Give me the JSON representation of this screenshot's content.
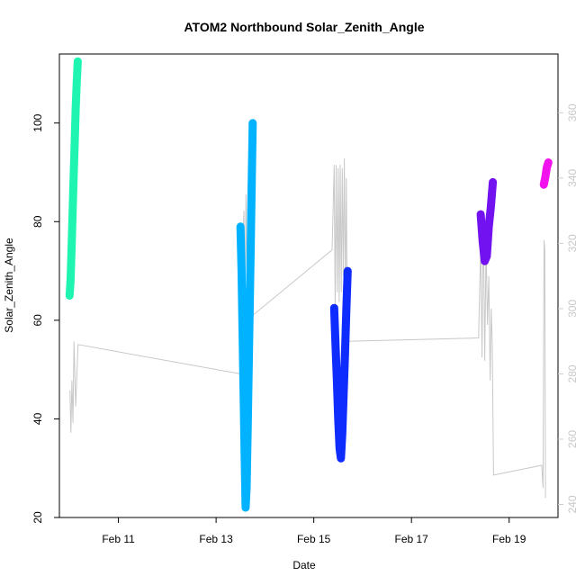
{
  "chart_data": {
    "type": "line",
    "title": "ATOM2 Northbound Solar_Zenith_Angle",
    "xlabel": "Date",
    "ylabel": "Solar_Zenith_Angle",
    "xlim": [
      "2017-02-09 19:00",
      "2017-02-20 00:00"
    ],
    "ylim": [
      20,
      114
    ],
    "ylim_right": [
      236,
      378
    ],
    "grid": false,
    "legend": "none",
    "x_ticks": [
      {
        "x": "2017-02-11 00:00",
        "label": "Feb 11"
      },
      {
        "x": "2017-02-13 00:00",
        "label": "Feb 13"
      },
      {
        "x": "2017-02-15 00:00",
        "label": "Feb 15"
      },
      {
        "x": "2017-02-17 00:00",
        "label": "Feb 17"
      },
      {
        "x": "2017-02-19 00:00",
        "label": "Feb 19"
      }
    ],
    "y_ticks_left": [
      "20",
      "40",
      "60",
      "80",
      "100"
    ],
    "y_ticks_right": [
      "240",
      "260",
      "280",
      "300",
      "320",
      "340",
      "360"
    ],
    "secondary_axis_color": "#cccccc",
    "series": [
      {
        "color": "#1ff5b0",
        "points": [
          [
            "2017-02-10 00:00",
            65
          ],
          [
            "2017-02-10 00:30",
            68
          ],
          [
            "2017-02-10 01:00",
            75
          ],
          [
            "2017-02-10 01:30",
            82
          ],
          [
            "2017-02-10 02:00",
            89
          ],
          [
            "2017-02-10 02:30",
            96
          ],
          [
            "2017-02-10 03:00",
            103
          ],
          [
            "2017-02-10 03:30",
            108
          ],
          [
            "2017-02-10 04:00",
            112.5
          ]
        ]
      },
      {
        "color": "#00b2ff",
        "points": [
          [
            "2017-02-13 12:00",
            79
          ],
          [
            "2017-02-13 12:30",
            70
          ],
          [
            "2017-02-13 13:00",
            58
          ],
          [
            "2017-02-13 13:30",
            46
          ],
          [
            "2017-02-13 14:00",
            33
          ],
          [
            "2017-02-13 14:30",
            22
          ],
          [
            "2017-02-13 15:00",
            26
          ],
          [
            "2017-02-13 15:30",
            38
          ],
          [
            "2017-02-13 16:00",
            50
          ],
          [
            "2017-02-13 16:30",
            62
          ],
          [
            "2017-02-13 17:00",
            75
          ],
          [
            "2017-02-13 17:30",
            88
          ],
          [
            "2017-02-13 18:00",
            100
          ]
        ]
      },
      {
        "color": "#0f2cff",
        "points": [
          [
            "2017-02-15 10:00",
            62.5
          ],
          [
            "2017-02-15 10:40",
            55
          ],
          [
            "2017-02-15 11:20",
            48
          ],
          [
            "2017-02-15 12:00",
            40
          ],
          [
            "2017-02-15 12:40",
            34
          ],
          [
            "2017-02-15 13:20",
            32
          ],
          [
            "2017-02-15 14:00",
            37
          ],
          [
            "2017-02-15 14:40",
            45
          ],
          [
            "2017-02-15 15:20",
            53
          ],
          [
            "2017-02-15 16:00",
            62
          ],
          [
            "2017-02-15 16:40",
            70
          ]
        ]
      },
      {
        "color": "#7312f0",
        "points": [
          [
            "2017-02-18 10:00",
            81.5
          ],
          [
            "2017-02-18 11:00",
            76
          ],
          [
            "2017-02-18 12:00",
            72
          ],
          [
            "2017-02-18 13:00",
            73
          ],
          [
            "2017-02-18 14:00",
            79
          ],
          [
            "2017-02-18 15:00",
            83
          ],
          [
            "2017-02-18 16:00",
            88
          ]
        ]
      },
      {
        "color": "#f212ee",
        "points": [
          [
            "2017-02-19 17:00",
            87.5
          ],
          [
            "2017-02-19 17:45",
            89
          ],
          [
            "2017-02-19 18:30",
            91
          ],
          [
            "2017-02-19 19:15",
            92
          ]
        ]
      }
    ],
    "secondary_series": {
      "color": "#c8c8c8",
      "points": [
        [
          "2017-02-10 00:10",
          275
        ],
        [
          "2017-02-10 00:40",
          262
        ],
        [
          "2017-02-10 01:10",
          278
        ],
        [
          "2017-02-10 01:40",
          265
        ],
        [
          "2017-02-10 02:10",
          290
        ],
        [
          "2017-02-10 03:00",
          270
        ],
        [
          "2017-02-10 04:10",
          289
        ],
        [
          "2017-02-13 12:00",
          280
        ],
        [
          "2017-02-13 13:00",
          315
        ],
        [
          "2017-02-13 13:40",
          330
        ],
        [
          "2017-02-13 14:10",
          300
        ],
        [
          "2017-02-13 14:40",
          335
        ],
        [
          "2017-02-13 15:10",
          305
        ],
        [
          "2017-02-13 15:40",
          338
        ],
        [
          "2017-02-13 16:10",
          310
        ],
        [
          "2017-02-13 16:40",
          340
        ],
        [
          "2017-02-13 17:20",
          315
        ],
        [
          "2017-02-13 17:50",
          340
        ],
        [
          "2017-02-13 18:10",
          298
        ],
        [
          "2017-02-15 09:00",
          318
        ],
        [
          "2017-02-15 10:00",
          344
        ],
        [
          "2017-02-15 10:30",
          300
        ],
        [
          "2017-02-15 11:00",
          344
        ],
        [
          "2017-02-15 11:30",
          305
        ],
        [
          "2017-02-15 12:00",
          343
        ],
        [
          "2017-02-15 12:30",
          302
        ],
        [
          "2017-02-15 13:00",
          344
        ],
        [
          "2017-02-15 13:30",
          305
        ],
        [
          "2017-02-15 14:00",
          343
        ],
        [
          "2017-02-15 14:30",
          310
        ],
        [
          "2017-02-15 15:00",
          346
        ],
        [
          "2017-02-15 15:30",
          304
        ],
        [
          "2017-02-15 16:00",
          340
        ],
        [
          "2017-02-15 16:30",
          290
        ],
        [
          "2017-02-18 09:00",
          291
        ],
        [
          "2017-02-18 10:00",
          320
        ],
        [
          "2017-02-18 10:40",
          285
        ],
        [
          "2017-02-18 11:20",
          330
        ],
        [
          "2017-02-18 12:00",
          284
        ],
        [
          "2017-02-18 12:40",
          320
        ],
        [
          "2017-02-18 13:20",
          295
        ],
        [
          "2017-02-18 14:00",
          310
        ],
        [
          "2017-02-18 14:40",
          278
        ],
        [
          "2017-02-18 15:10",
          300
        ],
        [
          "2017-02-18 15:40",
          290
        ],
        [
          "2017-02-18 16:20",
          249
        ],
        [
          "2017-02-19 16:00",
          252
        ],
        [
          "2017-02-19 16:40",
          245
        ],
        [
          "2017-02-19 17:10",
          321
        ],
        [
          "2017-02-19 17:30",
          318
        ],
        [
          "2017-02-19 17:50",
          242
        ]
      ]
    }
  }
}
